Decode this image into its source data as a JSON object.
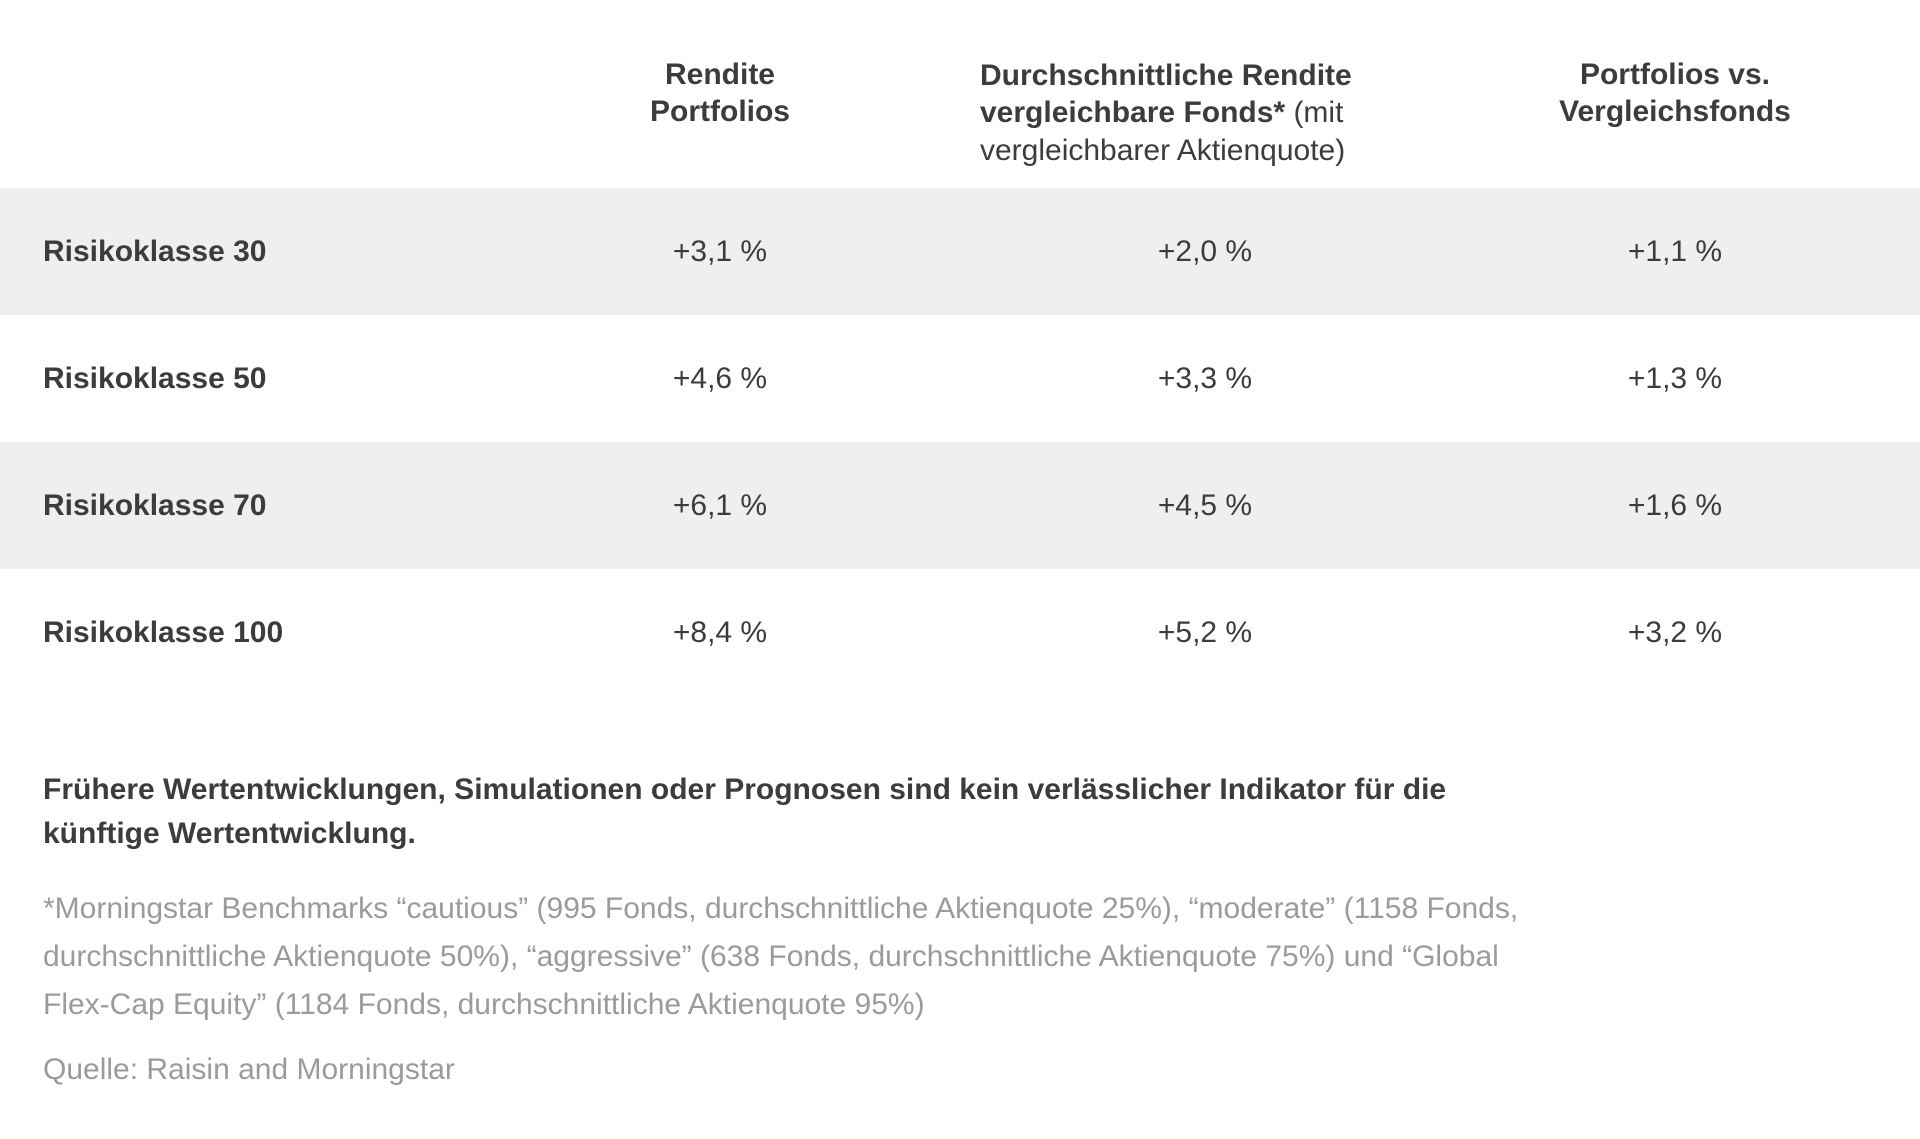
{
  "table": {
    "columns": [
      {
        "label": "Rendite Portfolios",
        "lines": [
          "Rendite",
          "Portfolios"
        ]
      },
      {
        "label": "Durchschnittliche Rendite vergleichbare Fonds* (mit vergleichbarer Aktienquote)",
        "bold": "Durchschnittliche Rendite vergleichbare Fonds*",
        "normal": " (mit vergleichbarer Aktienquote)"
      },
      {
        "label": "Portfolios vs. Vergleichsfonds",
        "lines": [
          "Portfolios vs.",
          "Vergleichsfonds"
        ]
      }
    ],
    "rows": [
      {
        "label": "Risikoklasse 30",
        "values": [
          "+3,1 %",
          "+2,0 %",
          "+1,1 %"
        ]
      },
      {
        "label": "Risikoklasse 50",
        "values": [
          "+4,6 %",
          "+3,3 %",
          "+1,3 %"
        ]
      },
      {
        "label": "Risikoklasse 70",
        "values": [
          "+6,1 %",
          "+4,5 %",
          "+1,6 %"
        ]
      },
      {
        "label": "Risikoklasse 100",
        "values": [
          "+8,4 %",
          "+5,2 %",
          "+3,2 %"
        ]
      }
    ]
  },
  "disclaimer": {
    "lines": [
      "Frühere Wertentwicklungen, Simulationen oder Prognosen sind kein verlässlicher Indikator für die",
      "künftige Wertentwicklung."
    ]
  },
  "footnote": {
    "lines": [
      "*Morningstar Benchmarks “cautious” (995 Fonds, durchschnittliche Aktienquote 25%), “moderate” (1158 Fonds,",
      "durchschnittliche Aktienquote 50%), “aggressive” (638 Fonds, durchschnittliche Aktienquote 75%) und “Global",
      "Flex-Cap Equity” (1184 Fonds, durchschnittliche Aktienquote 95%)"
    ]
  },
  "source": "Quelle: Raisin and Morningstar",
  "colors": {
    "row_alt_background": "#efefef",
    "text_dark": "#3c3c3c",
    "text_gray": "#9b9b9b"
  },
  "chart_data": {
    "type": "table",
    "title": "",
    "columns": [
      "",
      "Rendite Portfolios",
      "Durchschnittliche Rendite vergleichbare Fonds* (mit vergleichbarer Aktienquote)",
      "Portfolios vs. Vergleichsfonds"
    ],
    "rows": [
      [
        "Risikoklasse 30",
        "+3,1 %",
        "+2,0 %",
        "+1,1 %"
      ],
      [
        "Risikoklasse 50",
        "+4,6 %",
        "+3,3 %",
        "+1,3 %"
      ],
      [
        "Risikoklasse 70",
        "+6,1 %",
        "+4,5 %",
        "+1,6 %"
      ],
      [
        "Risikoklasse 100",
        "+8,4 %",
        "+5,2 %",
        "+3,2 %"
      ]
    ],
    "values_percent": [
      [
        3.1,
        2.0,
        1.1
      ],
      [
        4.6,
        3.3,
        1.3
      ],
      [
        6.1,
        4.5,
        1.6
      ],
      [
        8.4,
        5.2,
        3.2
      ]
    ],
    "notes": [
      "Frühere Wertentwicklungen, Simulationen oder Prognosen sind kein verlässlicher Indikator für die künftige Wertentwicklung.",
      "*Morningstar Benchmarks “cautious” (995 Fonds, durchschnittliche Aktienquote 25%), “moderate” (1158 Fonds, durchschnittliche Aktienquote 50%), “aggressive” (638 Fonds, durchschnittliche Aktienquote 75%) und “Global Flex-Cap Equity” (1184 Fonds, durchschnittliche Aktienquote 95%)",
      "Quelle: Raisin and Morningstar"
    ]
  }
}
